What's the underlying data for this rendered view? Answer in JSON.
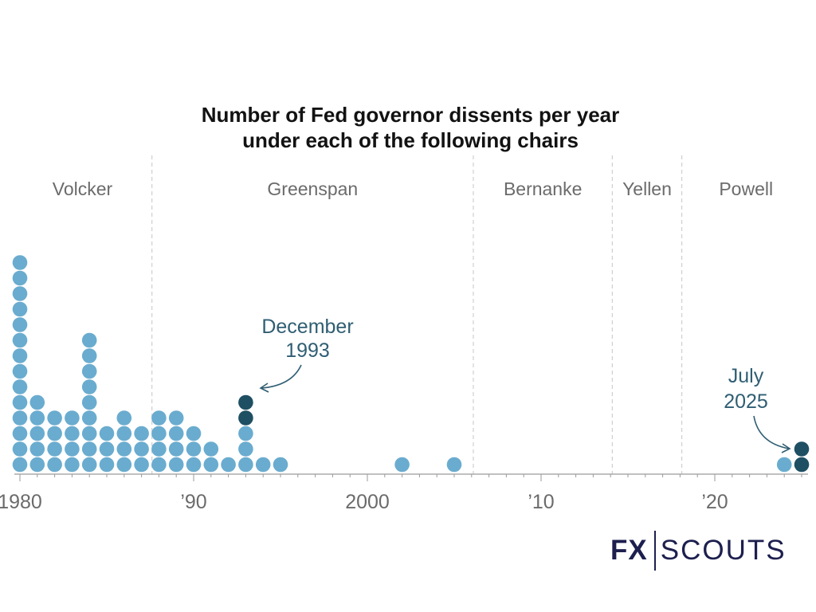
{
  "chart_data": {
    "type": "scatter",
    "title_lines": [
      "Number of Fed governor dissents per year",
      "under each of the following chairs"
    ],
    "xlabel": "",
    "ylabel": "",
    "x_ticks": [
      {
        "year": 1980,
        "label": "1980"
      },
      {
        "year": 1990,
        "label": "’90"
      },
      {
        "year": 2000,
        "label": "2000"
      },
      {
        "year": 2010,
        "label": "’10"
      },
      {
        "year": 2020,
        "label": "’20"
      }
    ],
    "xlim": [
      1980,
      2025
    ],
    "grid": false,
    "chairs": [
      {
        "name": "Volcker",
        "start": 1979.6,
        "end": 1987.6
      },
      {
        "name": "Greenspan",
        "start": 1987.6,
        "end": 2006.1
      },
      {
        "name": "Bernanke",
        "start": 2006.1,
        "end": 2014.1
      },
      {
        "name": "Yellen",
        "start": 2014.1,
        "end": 2018.1
      },
      {
        "name": "Powell",
        "start": 2018.1,
        "end": 2025.5
      }
    ],
    "dissents_per_year": [
      {
        "year": 1980,
        "count": 14,
        "highlighted": 0
      },
      {
        "year": 1981,
        "count": 5,
        "highlighted": 0
      },
      {
        "year": 1982,
        "count": 4,
        "highlighted": 0
      },
      {
        "year": 1983,
        "count": 4,
        "highlighted": 0
      },
      {
        "year": 1984,
        "count": 9,
        "highlighted": 0
      },
      {
        "year": 1985,
        "count": 3,
        "highlighted": 0
      },
      {
        "year": 1986,
        "count": 4,
        "highlighted": 0
      },
      {
        "year": 1987,
        "count": 3,
        "highlighted": 0
      },
      {
        "year": 1988,
        "count": 4,
        "highlighted": 0
      },
      {
        "year": 1989,
        "count": 4,
        "highlighted": 0
      },
      {
        "year": 1990,
        "count": 3,
        "highlighted": 0
      },
      {
        "year": 1991,
        "count": 2,
        "highlighted": 0
      },
      {
        "year": 1992,
        "count": 1,
        "highlighted": 0
      },
      {
        "year": 1993,
        "count": 5,
        "highlighted": 2
      },
      {
        "year": 1994,
        "count": 1,
        "highlighted": 0
      },
      {
        "year": 1995,
        "count": 1,
        "highlighted": 0
      },
      {
        "year": 2002,
        "count": 1,
        "highlighted": 0
      },
      {
        "year": 2005,
        "count": 1,
        "highlighted": 0
      },
      {
        "year": 2024,
        "count": 1,
        "highlighted": 0
      },
      {
        "year": 2025,
        "count": 2,
        "highlighted": 2
      }
    ],
    "annotations": [
      {
        "lines": [
          "December",
          "1993"
        ],
        "year": 1993
      },
      {
        "lines": [
          "July",
          "2025"
        ],
        "year": 2025
      }
    ],
    "colors": {
      "dot": "#6aaccf",
      "dot_highlight": "#1f4f63",
      "axis": "#9a9a9a",
      "divider": "#cfcfcf",
      "annotation": "#2f5e73"
    }
  },
  "brand": {
    "fx": "FX",
    "scouts": "SCOUTS"
  }
}
